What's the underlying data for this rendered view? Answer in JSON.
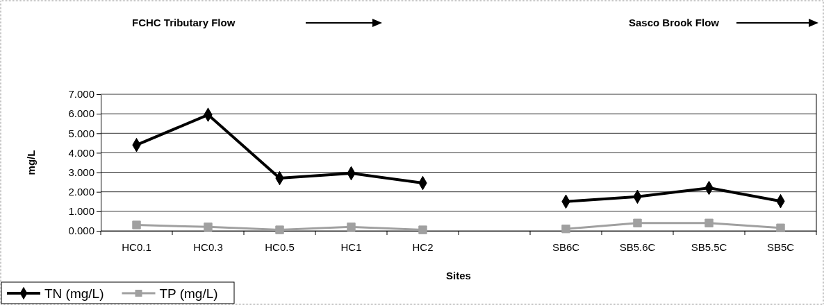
{
  "chart_data": {
    "type": "line",
    "xlabel": "Sites",
    "ylabel": "mg/L",
    "categories": [
      "HC0.1",
      "HC0.3",
      "HC0.5",
      "HC1",
      "HC2",
      null,
      "SB6C",
      "SB5.6C",
      "SB5.5C",
      "SB5C"
    ],
    "series": [
      {
        "name": "TN (mg/L)",
        "color": "#000000",
        "marker": "diamond",
        "values": [
          4.4,
          5.95,
          2.7,
          2.95,
          2.45,
          null,
          1.5,
          1.75,
          2.2,
          1.52
        ]
      },
      {
        "name": "TP (mg/L)",
        "color": "#a0a0a0",
        "marker": "square",
        "values": [
          0.3,
          0.2,
          0.05,
          0.2,
          0.05,
          null,
          0.1,
          0.4,
          0.4,
          0.15
        ]
      }
    ],
    "ylim": [
      0,
      7
    ],
    "yticks": [
      {
        "value": 0,
        "label": "0.000"
      },
      {
        "value": 1,
        "label": "1.000"
      },
      {
        "value": 2,
        "label": "2.000"
      },
      {
        "value": 3,
        "label": "3.000"
      },
      {
        "value": 4,
        "label": "4.000"
      },
      {
        "value": 5,
        "label": "5.000"
      },
      {
        "value": 6,
        "label": "6.000"
      },
      {
        "value": 7,
        "label": "7.000"
      }
    ],
    "grid": "y",
    "legend": "bottom left",
    "line_style": "solid",
    "annotations": [
      "FCHC Tributary Flow",
      "Sasco Brook Flow"
    ]
  }
}
